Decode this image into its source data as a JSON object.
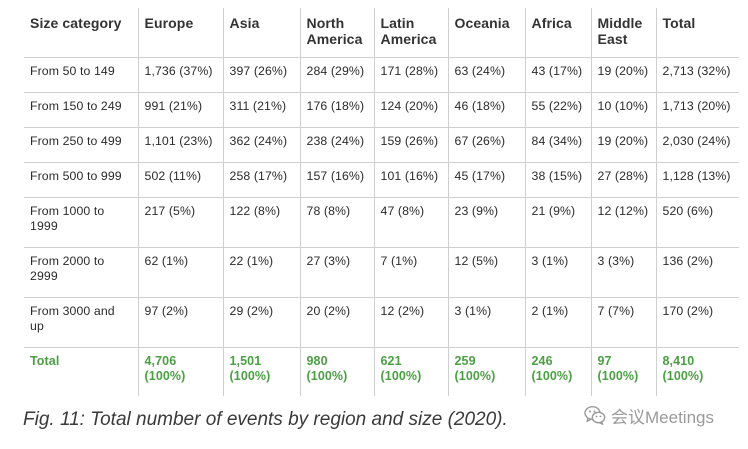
{
  "table": {
    "headers": [
      "Size category",
      "Europe",
      "Asia",
      "North America",
      "Latin America",
      "Oceania",
      "Africa",
      "Middle East",
      "Total"
    ],
    "rows": [
      [
        "From 50 to 149",
        "1,736 (37%)",
        "397 (26%)",
        "284 (29%)",
        "171 (28%)",
        "63 (24%)",
        "43 (17%)",
        "19 (20%)",
        "2,713 (32%)"
      ],
      [
        "From 150 to 249",
        "991 (21%)",
        "311 (21%)",
        "176 (18%)",
        "124 (20%)",
        "46 (18%)",
        "55 (22%)",
        "10 (10%)",
        "1,713 (20%)"
      ],
      [
        "From 250 to 499",
        "1,101 (23%)",
        "362 (24%)",
        "238 (24%)",
        "159 (26%)",
        "67 (26%)",
        "84 (34%)",
        "19 (20%)",
        "2,030 (24%)"
      ],
      [
        "From 500 to 999",
        "502 (11%)",
        "258 (17%)",
        "157 (16%)",
        "101 (16%)",
        "45 (17%)",
        "38 (15%)",
        "27 (28%)",
        "1,128 (13%)"
      ],
      [
        "From 1000 to 1999",
        "217 (5%)",
        "122 (8%)",
        "78 (8%)",
        "47 (8%)",
        "23 (9%)",
        "21 (9%)",
        "12 (12%)",
        "520 (6%)"
      ],
      [
        "From 2000 to 2999",
        "62 (1%)",
        "22 (1%)",
        "27 (3%)",
        "7 (1%)",
        "12 (5%)",
        "3 (1%)",
        "3 (3%)",
        "136 (2%)"
      ],
      [
        "From 3000 and up",
        "97 (2%)",
        "29 (2%)",
        "20 (2%)",
        "12 (2%)",
        "3 (1%)",
        "2 (1%)",
        "7 (7%)",
        "170 (2%)"
      ]
    ],
    "total_row": [
      "Total",
      "4,706 (100%)",
      "1,501 (100%)",
      "980 (100%)",
      "621 (100%)",
      "259 (100%)",
      "246 (100%)",
      "97 (100%)",
      "8,410 (100%)"
    ]
  },
  "caption": "Fig. 11: Total number of events by region and size (2020).",
  "watermark": {
    "text": "会议Meetings",
    "icon": "wechat-icon"
  },
  "colors": {
    "total_row": "#4aa043",
    "grid": "#cfcfcf",
    "text": "#2b2b2b"
  }
}
